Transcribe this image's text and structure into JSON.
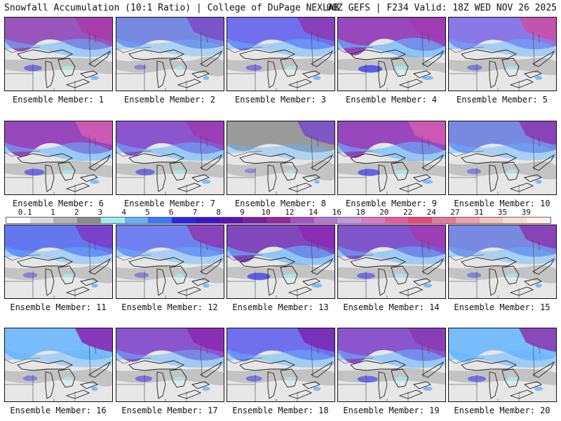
{
  "header": {
    "title_left": "Snowfall Accumulation (10:1 Ratio) | College of DuPage NEXLAB",
    "title_right": "00Z GEFS | F234 Valid: 18Z WED NOV 26 2025"
  },
  "legend": {
    "ticks": [
      "0.1",
      "1",
      "2",
      "3",
      "4",
      "5",
      "6",
      "7",
      "8",
      "9",
      "10",
      "12",
      "14",
      "16",
      "18",
      "20",
      "22",
      "24",
      "27",
      "31",
      "35",
      "39"
    ],
    "colors": [
      "#ffffff",
      "#dcdcdc",
      "#b4b4b4",
      "#8c8c8c",
      "#9ef0f0",
      "#64b4ff",
      "#3c78ff",
      "#2828e6",
      "#3c14c8",
      "#5a14b4",
      "#7a1ea6",
      "#9628a0",
      "#a850c8",
      "#b478d2",
      "#c896dc",
      "#dc78c8",
      "#e65aa0",
      "#e64678",
      "#e6789a",
      "#f0a0aa",
      "#f5c3b9",
      "#faddcb",
      "#fff0e0"
    ]
  },
  "panels": [
    {
      "label": "Ensemble Member: 1",
      "north": "#8a3cb4",
      "ne": "#a83ca8",
      "blue": 0.5
    },
    {
      "label": "Ensemble Member: 2",
      "north": "#6478e0",
      "ne": "#7a50c8",
      "blue": 0.2
    },
    {
      "label": "Ensemble Member: 3",
      "north": "#5a5af0",
      "ne": "#8a3cb4",
      "blue": 0.4
    },
    {
      "label": "Ensemble Member: 4",
      "north": "#8a2ab4",
      "ne": "#a03cb4",
      "blue": 0.8
    },
    {
      "label": "Ensemble Member: 5",
      "north": "#7a64e6",
      "ne": "#c850a8",
      "blue": 0.35
    },
    {
      "label": "Ensemble Member: 6",
      "north": "#8a2ab4",
      "ne": "#d05ab4",
      "blue": 0.6
    },
    {
      "label": "Ensemble Member: 7",
      "north": "#7a3cc8",
      "ne": "#9a3cb4",
      "blue": 0.55
    },
    {
      "label": "Ensemble Member: 8",
      "north": "#8c8c8c",
      "ne": "#7a50c8",
      "blue": 0.15
    },
    {
      "label": "Ensemble Member: 9",
      "north": "#8a2ab4",
      "ne": "#d05ab4",
      "blue": 0.7
    },
    {
      "label": "Ensemble Member: 10",
      "north": "#6478e0",
      "ne": "#8a3cb4",
      "blue": 0.3
    },
    {
      "label": "Ensemble Member: 11",
      "north": "#4b64f0",
      "ne": "#7a3cc8",
      "blue": 0.3
    },
    {
      "label": "Ensemble Member: 12",
      "north": "#5a6ef0",
      "ne": "#8a3cb4",
      "blue": 0.3
    },
    {
      "label": "Ensemble Member: 13",
      "north": "#6e2ab4",
      "ne": "#8a2ab4",
      "blue": 0.75
    },
    {
      "label": "Ensemble Member: 14",
      "north": "#6e3cc8",
      "ne": "#a03cb4",
      "blue": 0.5
    },
    {
      "label": "Ensemble Member: 15",
      "north": "#6478e0",
      "ne": "#8a3cb4",
      "blue": 0.3
    },
    {
      "label": "Ensemble Member: 16",
      "north": "#64b4ff",
      "ne": "#8a2ab4",
      "blue": 0.3
    },
    {
      "label": "Ensemble Member: 17",
      "north": "#7a3cc8",
      "ne": "#8a2ab4",
      "blue": 0.45
    },
    {
      "label": "Ensemble Member: 18",
      "north": "#5a5af0",
      "ne": "#7a2ab4",
      "blue": 0.4
    },
    {
      "label": "Ensemble Member: 19",
      "north": "#7a3cc8",
      "ne": "#8a3cb4",
      "blue": 0.6
    },
    {
      "label": "Ensemble Member: 20",
      "north": "#64b4ff",
      "ne": "#8a3cb4",
      "blue": 0.5
    }
  ]
}
